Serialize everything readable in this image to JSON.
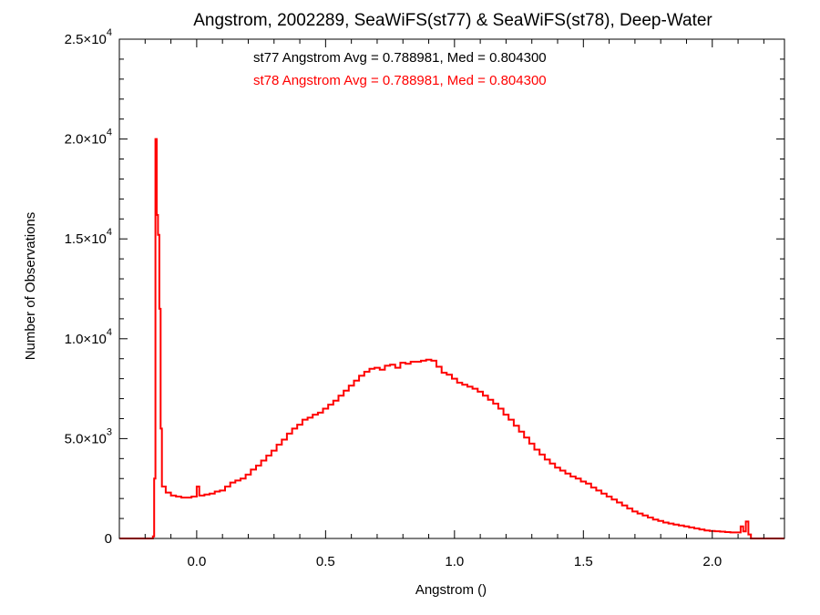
{
  "chart_data": {
    "type": "histogram",
    "title": "Angstrom, 2002289, SeaWiFS(st77) & SeaWiFS(st78), Deep-Water",
    "xlabel": "Angstrom ()",
    "ylabel": "Number of Observations",
    "xlim": [
      -0.3,
      2.28
    ],
    "ylim": [
      0,
      25000
    ],
    "x_ticks": [
      {
        "value": 0.0,
        "label": "0.0"
      },
      {
        "value": 0.5,
        "label": "0.5"
      },
      {
        "value": 1.0,
        "label": "1.0"
      },
      {
        "value": 1.5,
        "label": "1.5"
      },
      {
        "value": 2.0,
        "label": "2.0"
      }
    ],
    "y_ticks": [
      {
        "value": 0,
        "mantissa": "0",
        "exp": ""
      },
      {
        "value": 5000,
        "mantissa": "5.0×10",
        "exp": "3"
      },
      {
        "value": 10000,
        "mantissa": "1.0×10",
        "exp": "4"
      },
      {
        "value": 15000,
        "mantissa": "1.5×10",
        "exp": "4"
      },
      {
        "value": 20000,
        "mantissa": "2.0×10",
        "exp": "4"
      },
      {
        "value": 25000,
        "mantissa": "2.5×10",
        "exp": "4"
      }
    ],
    "annotations": [
      {
        "text": "st77 Angstrom Avg = 0.788981, Med = 0.804300",
        "color": "#000000"
      },
      {
        "text": "st78 Angstrom Avg = 0.788981, Med = 0.804300",
        "color": "#ff0000"
      }
    ],
    "series": [
      {
        "name": "st78",
        "color": "#ff0000",
        "points": [
          [
            -0.3,
            0
          ],
          [
            -0.18,
            0
          ],
          [
            -0.17,
            100
          ],
          [
            -0.165,
            3000
          ],
          [
            -0.16,
            20000
          ],
          [
            -0.155,
            16200
          ],
          [
            -0.15,
            15200
          ],
          [
            -0.145,
            11500
          ],
          [
            -0.14,
            5500
          ],
          [
            -0.135,
            2600
          ],
          [
            -0.12,
            2300
          ],
          [
            -0.1,
            2150
          ],
          [
            -0.08,
            2100
          ],
          [
            -0.06,
            2050
          ],
          [
            -0.04,
            2050
          ],
          [
            -0.02,
            2100
          ],
          [
            0.0,
            2600
          ],
          [
            0.01,
            2150
          ],
          [
            0.03,
            2200
          ],
          [
            0.05,
            2250
          ],
          [
            0.07,
            2350
          ],
          [
            0.09,
            2400
          ],
          [
            0.11,
            2600
          ],
          [
            0.13,
            2800
          ],
          [
            0.15,
            2900
          ],
          [
            0.17,
            3000
          ],
          [
            0.19,
            3200
          ],
          [
            0.21,
            3450
          ],
          [
            0.23,
            3650
          ],
          [
            0.25,
            3900
          ],
          [
            0.27,
            4150
          ],
          [
            0.29,
            4400
          ],
          [
            0.31,
            4700
          ],
          [
            0.33,
            4950
          ],
          [
            0.35,
            5250
          ],
          [
            0.37,
            5500
          ],
          [
            0.39,
            5700
          ],
          [
            0.41,
            5950
          ],
          [
            0.43,
            6050
          ],
          [
            0.45,
            6200
          ],
          [
            0.47,
            6300
          ],
          [
            0.49,
            6500
          ],
          [
            0.51,
            6700
          ],
          [
            0.53,
            6900
          ],
          [
            0.55,
            7150
          ],
          [
            0.57,
            7400
          ],
          [
            0.59,
            7650
          ],
          [
            0.61,
            7900
          ],
          [
            0.63,
            8150
          ],
          [
            0.65,
            8350
          ],
          [
            0.67,
            8500
          ],
          [
            0.69,
            8550
          ],
          [
            0.71,
            8450
          ],
          [
            0.73,
            8650
          ],
          [
            0.75,
            8700
          ],
          [
            0.77,
            8550
          ],
          [
            0.79,
            8800
          ],
          [
            0.81,
            8750
          ],
          [
            0.83,
            8850
          ],
          [
            0.85,
            8850
          ],
          [
            0.87,
            8900
          ],
          [
            0.89,
            8950
          ],
          [
            0.91,
            8900
          ],
          [
            0.93,
            8600
          ],
          [
            0.95,
            8300
          ],
          [
            0.97,
            8200
          ],
          [
            0.99,
            8000
          ],
          [
            1.01,
            7800
          ],
          [
            1.03,
            7700
          ],
          [
            1.05,
            7600
          ],
          [
            1.07,
            7500
          ],
          [
            1.09,
            7350
          ],
          [
            1.11,
            7150
          ],
          [
            1.13,
            6950
          ],
          [
            1.15,
            6750
          ],
          [
            1.17,
            6500
          ],
          [
            1.19,
            6200
          ],
          [
            1.21,
            5950
          ],
          [
            1.23,
            5650
          ],
          [
            1.25,
            5350
          ],
          [
            1.27,
            5050
          ],
          [
            1.29,
            4750
          ],
          [
            1.31,
            4450
          ],
          [
            1.33,
            4200
          ],
          [
            1.35,
            3950
          ],
          [
            1.37,
            3750
          ],
          [
            1.39,
            3550
          ],
          [
            1.41,
            3400
          ],
          [
            1.43,
            3250
          ],
          [
            1.45,
            3100
          ],
          [
            1.47,
            3000
          ],
          [
            1.49,
            2850
          ],
          [
            1.51,
            2750
          ],
          [
            1.53,
            2550
          ],
          [
            1.55,
            2400
          ],
          [
            1.57,
            2250
          ],
          [
            1.59,
            2100
          ],
          [
            1.61,
            1950
          ],
          [
            1.63,
            1800
          ],
          [
            1.65,
            1650
          ],
          [
            1.67,
            1500
          ],
          [
            1.69,
            1350
          ],
          [
            1.71,
            1250
          ],
          [
            1.73,
            1150
          ],
          [
            1.75,
            1050
          ],
          [
            1.77,
            950
          ],
          [
            1.79,
            880
          ],
          [
            1.81,
            800
          ],
          [
            1.83,
            750
          ],
          [
            1.85,
            700
          ],
          [
            1.87,
            650
          ],
          [
            1.89,
            600
          ],
          [
            1.91,
            550
          ],
          [
            1.93,
            500
          ],
          [
            1.95,
            450
          ],
          [
            1.97,
            400
          ],
          [
            1.99,
            380
          ],
          [
            2.01,
            360
          ],
          [
            2.03,
            340
          ],
          [
            2.05,
            320
          ],
          [
            2.07,
            300
          ],
          [
            2.09,
            300
          ],
          [
            2.11,
            600
          ],
          [
            2.12,
            350
          ],
          [
            2.13,
            850
          ],
          [
            2.14,
            200
          ],
          [
            2.15,
            0
          ],
          [
            2.28,
            0
          ]
        ]
      }
    ]
  }
}
